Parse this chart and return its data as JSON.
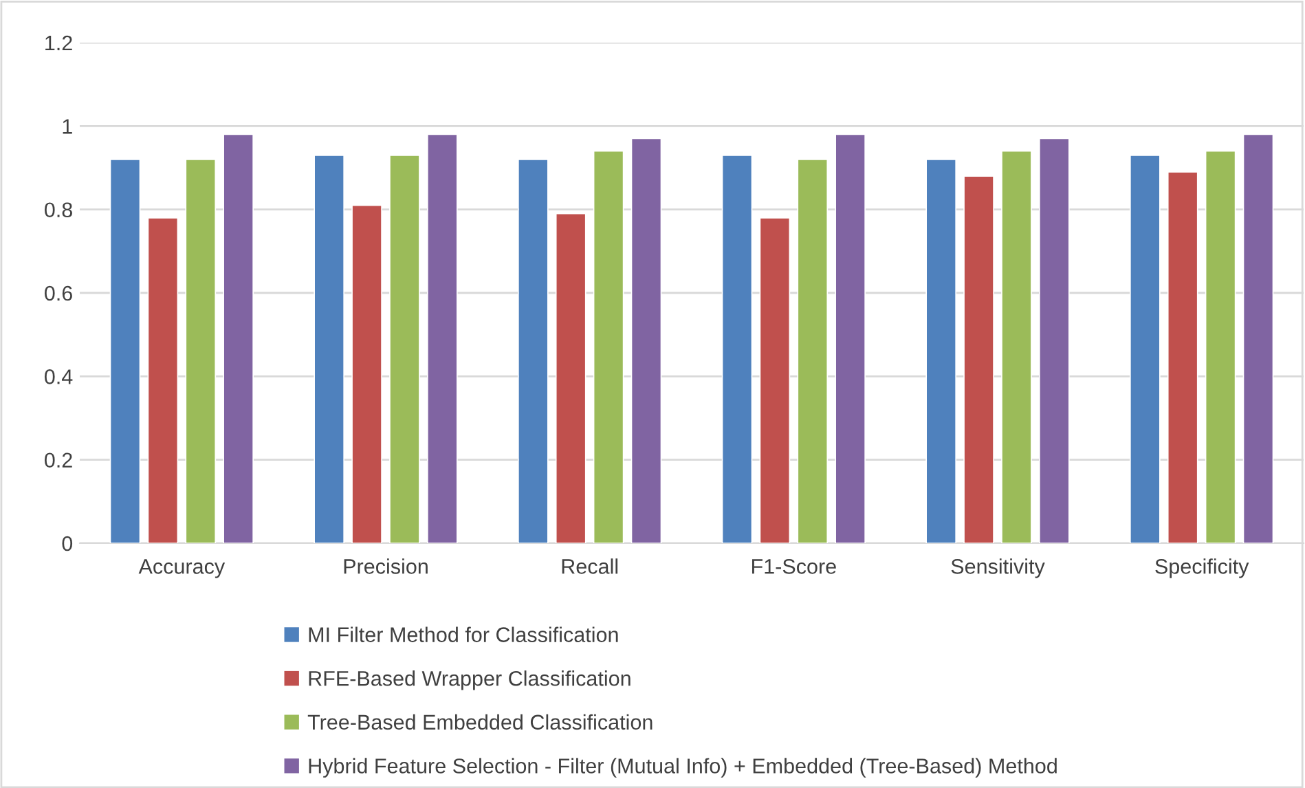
{
  "chart_data": {
    "type": "bar",
    "categories": [
      "Accuracy",
      "Precision",
      "Recall",
      "F1-Score",
      "Sensitivity",
      "Specificity"
    ],
    "series": [
      {
        "name": "MI Filter Method for Classification",
        "color": "#4f81bd",
        "values": [
          0.92,
          0.93,
          0.92,
          0.93,
          0.92,
          0.93
        ]
      },
      {
        "name": "RFE-Based Wrapper Classification",
        "color": "#c0504d",
        "values": [
          0.78,
          0.81,
          0.79,
          0.78,
          0.88,
          0.89
        ]
      },
      {
        "name": "Tree-Based Embedded Classification",
        "color": "#9bbb59",
        "values": [
          0.92,
          0.93,
          0.94,
          0.92,
          0.94,
          0.94
        ]
      },
      {
        "name": "Hybrid Feature Selection - Filter (Mutual Info) + Embedded (Tree-Based) Method",
        "color": "#8064a2",
        "values": [
          0.98,
          0.98,
          0.97,
          0.98,
          0.97,
          0.98
        ]
      }
    ],
    "ylim": [
      0,
      1.2
    ],
    "yticks": [
      0,
      0.2,
      0.4,
      0.6,
      0.8,
      1,
      1.2
    ],
    "grid": "y",
    "legend": "bottom"
  }
}
